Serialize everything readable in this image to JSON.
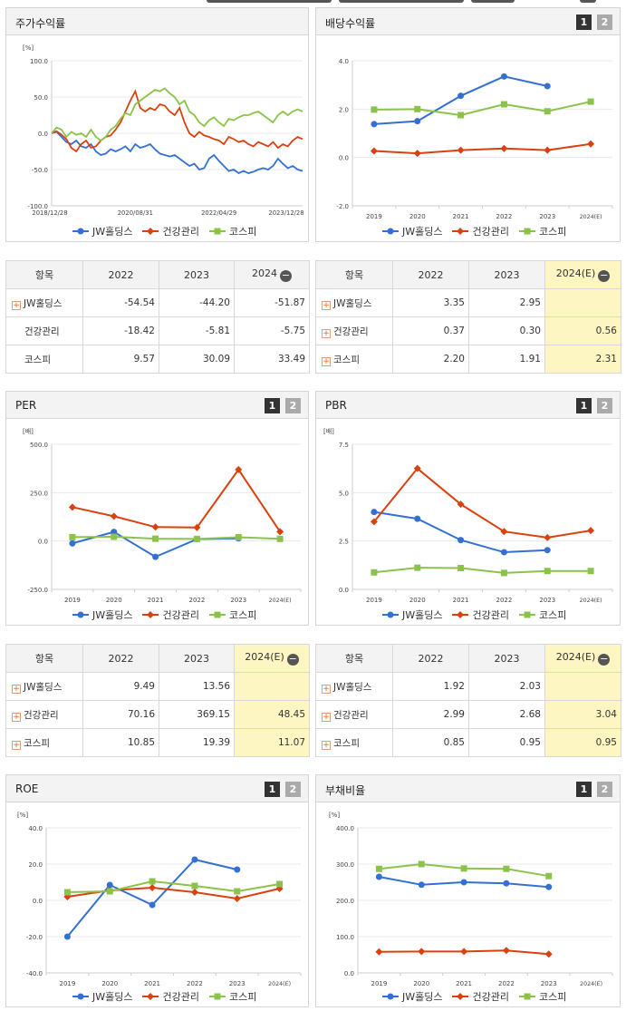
{
  "colors": {
    "jw": "#3370d4",
    "health": "#d9420f",
    "kospi": "#8bc34a"
  },
  "legend": [
    "JW홀딩스",
    "건강관리",
    "코스피"
  ],
  "buttons": {
    "one": "1",
    "two": "2"
  },
  "panels": {
    "stock": {
      "title": "주가수익률"
    },
    "dividend": {
      "title": "배당수익률"
    },
    "per": {
      "title": "PER"
    },
    "pbr": {
      "title": "PBR"
    },
    "roe": {
      "title": "ROE"
    },
    "debt": {
      "title": "부채비율"
    }
  },
  "tables": {
    "stock": {
      "header": [
        "항목",
        "2022",
        "2023",
        "2024"
      ],
      "rows": [
        {
          "name": "JW홀딩스",
          "plus": true,
          "values": [
            "-54.54",
            "-44.20",
            "-51.87"
          ]
        },
        {
          "name": "건강관리",
          "plus": false,
          "values": [
            "-18.42",
            "-5.81",
            "-5.75"
          ]
        },
        {
          "name": "코스피",
          "plus": false,
          "values": [
            "9.57",
            "30.09",
            "33.49"
          ]
        }
      ]
    },
    "dividend": {
      "header": [
        "항목",
        "2022",
        "2023",
        "2024(E)"
      ],
      "rows": [
        {
          "name": "JW홀딩스",
          "plus": true,
          "values": [
            "3.35",
            "2.95",
            ""
          ]
        },
        {
          "name": "건강관리",
          "plus": true,
          "values": [
            "0.37",
            "0.30",
            "0.56"
          ]
        },
        {
          "name": "코스피",
          "plus": true,
          "values": [
            "2.20",
            "1.91",
            "2.31"
          ]
        }
      ]
    },
    "per": {
      "header": [
        "항목",
        "2022",
        "2023",
        "2024(E)"
      ],
      "rows": [
        {
          "name": "JW홀딩스",
          "plus": true,
          "values": [
            "9.49",
            "13.56",
            ""
          ]
        },
        {
          "name": "건강관리",
          "plus": true,
          "values": [
            "70.16",
            "369.15",
            "48.45"
          ]
        },
        {
          "name": "코스피",
          "plus": true,
          "values": [
            "10.85",
            "19.39",
            "11.07"
          ]
        }
      ]
    },
    "pbr": {
      "header": [
        "항목",
        "2022",
        "2023",
        "2024(E)"
      ],
      "rows": [
        {
          "name": "JW홀딩스",
          "plus": true,
          "values": [
            "1.92",
            "2.03",
            ""
          ]
        },
        {
          "name": "건강관리",
          "plus": true,
          "values": [
            "2.99",
            "2.68",
            "3.04"
          ]
        },
        {
          "name": "코스피",
          "plus": true,
          "values": [
            "0.85",
            "0.95",
            "0.95"
          ]
        }
      ]
    }
  },
  "chart_data": [
    {
      "id": "stock",
      "type": "line",
      "unit": "[%]",
      "ylim": [
        -100,
        100
      ],
      "yticks": [
        "100.0",
        "50.0",
        "0.0",
        "-50.0",
        "-100.0"
      ],
      "xticks": [
        "2018/12/28",
        "2020/08/31",
        "2022/04/29",
        "2023/12/28"
      ],
      "series": [
        {
          "name": "JW홀딩스",
          "values": [
            0,
            2,
            -5,
            -12,
            -15,
            -10,
            -18,
            -20,
            -15,
            -25,
            -30,
            -28,
            -22,
            -25,
            -22,
            -18,
            -25,
            -15,
            -20,
            -18,
            -15,
            -22,
            -28,
            -30,
            -32,
            -30,
            -35,
            -40,
            -45,
            -42,
            -50,
            -48,
            -35,
            -30,
            -38,
            -45,
            -52,
            -50,
            -55,
            -52,
            -55,
            -53,
            -50,
            -48,
            -50,
            -45,
            -35,
            -42,
            -48,
            -45,
            -50,
            -52
          ]
        },
        {
          "name": "건강관리",
          "values": [
            0,
            3,
            -2,
            -8,
            -20,
            -25,
            -15,
            -10,
            -20,
            -18,
            -10,
            -5,
            -3,
            5,
            15,
            30,
            45,
            58,
            35,
            30,
            35,
            32,
            40,
            38,
            30,
            25,
            35,
            15,
            0,
            -5,
            2,
            -3,
            -5,
            -8,
            -10,
            -15,
            -5,
            -8,
            -12,
            -10,
            -15,
            -18,
            -12,
            -15,
            -18,
            -12,
            -20,
            -15,
            -18,
            -10,
            -5,
            -8
          ]
        },
        {
          "name": "코스피",
          "values": [
            0,
            8,
            5,
            -5,
            2,
            -2,
            0,
            -5,
            5,
            -5,
            -10,
            -5,
            5,
            10,
            20,
            28,
            25,
            40,
            45,
            50,
            55,
            60,
            58,
            62,
            55,
            50,
            40,
            45,
            30,
            25,
            15,
            10,
            18,
            22,
            15,
            10,
            20,
            18,
            22,
            25,
            25,
            28,
            30,
            25,
            20,
            15,
            25,
            30,
            25,
            30,
            33,
            30
          ]
        }
      ]
    },
    {
      "id": "dividend",
      "type": "line",
      "unit": "",
      "ylim": [
        -2,
        4
      ],
      "yticks": [
        "4.0",
        "2.0",
        "0.0",
        "-2.0"
      ],
      "categories": [
        "2019",
        "2020",
        "2021",
        "2022",
        "2023",
        "2024(E)"
      ],
      "series": [
        {
          "name": "JW홀딩스",
          "values": [
            1.38,
            1.5,
            2.55,
            3.35,
            2.95,
            null
          ]
        },
        {
          "name": "건강관리",
          "values": [
            0.27,
            0.17,
            0.3,
            0.37,
            0.3,
            0.56
          ]
        },
        {
          "name": "코스피",
          "values": [
            1.98,
            2.0,
            1.75,
            2.2,
            1.91,
            2.31
          ]
        }
      ]
    },
    {
      "id": "per",
      "type": "line",
      "unit": "[배]",
      "ylim": [
        -250,
        500
      ],
      "yticks": [
        "500.0",
        "250.0",
        "0.0",
        "-250.0"
      ],
      "categories": [
        "2019",
        "2020",
        "2021",
        "2022",
        "2023",
        "2024(E)"
      ],
      "series": [
        {
          "name": "JW홀딩스",
          "values": [
            -12,
            47,
            -82,
            9.49,
            13.56,
            null
          ]
        },
        {
          "name": "건강관리",
          "values": [
            175,
            128,
            72,
            70.16,
            369.15,
            48.45
          ]
        },
        {
          "name": "코스피",
          "values": [
            20,
            22,
            12,
            10.85,
            19.39,
            11.07
          ]
        }
      ]
    },
    {
      "id": "pbr",
      "type": "line",
      "unit": "[배]",
      "ylim": [
        0,
        7.5
      ],
      "yticks": [
        "7.5",
        "5.0",
        "2.5",
        "0.0"
      ],
      "categories": [
        "2019",
        "2020",
        "2021",
        "2022",
        "2023",
        "2024(E)"
      ],
      "series": [
        {
          "name": "JW홀딩스",
          "values": [
            4.0,
            3.65,
            2.55,
            1.92,
            2.03,
            null
          ]
        },
        {
          "name": "건강관리",
          "values": [
            3.5,
            6.25,
            4.4,
            2.99,
            2.68,
            3.04
          ]
        },
        {
          "name": "코스피",
          "values": [
            0.88,
            1.12,
            1.1,
            0.85,
            0.95,
            0.95
          ]
        }
      ]
    },
    {
      "id": "roe",
      "type": "line",
      "unit": "[%]",
      "ylim": [
        -40,
        40
      ],
      "yticks": [
        "40.0",
        "20.0",
        "0.0",
        "-20.0",
        "-40.0"
      ],
      "categories": [
        "2019",
        "2020",
        "2021",
        "2022",
        "2023",
        "2024(E)"
      ],
      "series": [
        {
          "name": "JW홀딩스",
          "values": [
            -20,
            8.5,
            -2.5,
            22.5,
            17,
            null
          ]
        },
        {
          "name": "건강관리",
          "values": [
            2,
            5.5,
            7,
            4.5,
            1,
            6.5
          ]
        },
        {
          "name": "코스피",
          "values": [
            4.5,
            5,
            10.5,
            8,
            5,
            9
          ]
        }
      ]
    },
    {
      "id": "debt",
      "type": "line",
      "unit": "[%]",
      "ylim": [
        0,
        400
      ],
      "yticks": [
        "400.0",
        "300.0",
        "200.0",
        "100.0",
        "0.0"
      ],
      "categories": [
        "2019",
        "2020",
        "2021",
        "2022",
        "2023",
        "2024(E)"
      ],
      "series": [
        {
          "name": "JW홀딩스",
          "values": [
            265,
            243,
            250,
            247,
            237,
            null
          ]
        },
        {
          "name": "건강관리",
          "values": [
            58,
            59,
            59,
            62,
            52,
            null
          ]
        },
        {
          "name": "코스피",
          "values": [
            287,
            300,
            288,
            287,
            267,
            null
          ]
        }
      ]
    }
  ]
}
